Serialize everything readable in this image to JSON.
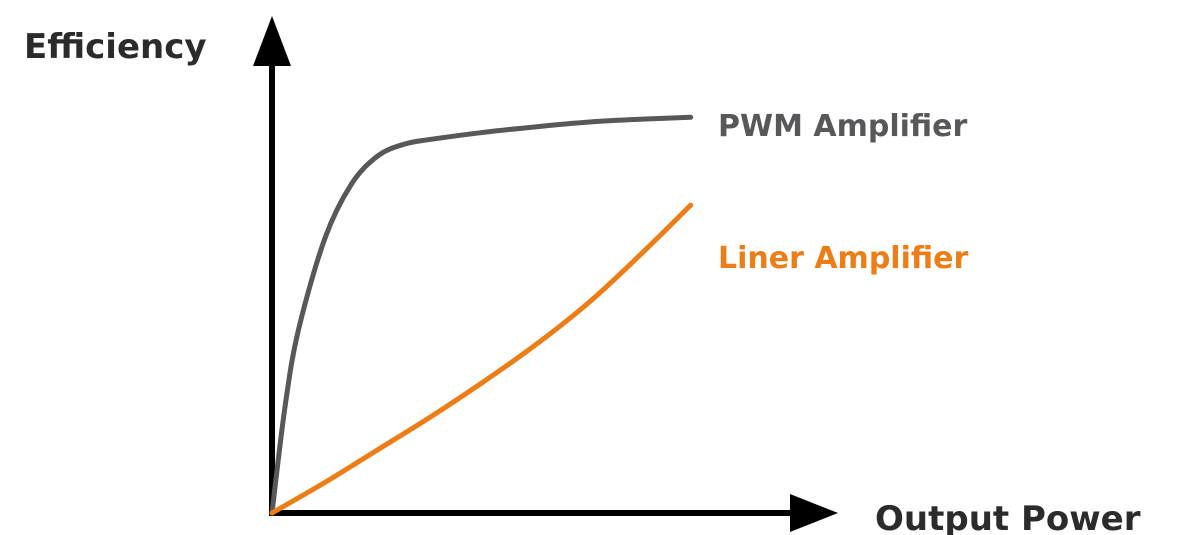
{
  "chart_data": {
    "type": "line",
    "title": "",
    "xlabel": "Output Power",
    "ylabel": "Efficiency",
    "grid": false,
    "legend": "inline labels at line ends",
    "xlim": [
      0,
      10
    ],
    "ylim": [
      0,
      10
    ],
    "series": [
      {
        "name": "PWM Amplifier",
        "color": "#58585a",
        "x": [
          0,
          0.25,
          0.5,
          1,
          1.5,
          2,
          2.5,
          3,
          4,
          5,
          6,
          7,
          7.9
        ],
        "y": [
          0,
          2.3,
          3.9,
          5.85,
          7.0,
          7.6,
          7.85,
          7.95,
          8.1,
          8.22,
          8.32,
          8.38,
          8.42
        ]
      },
      {
        "name": "Liner Amplifier",
        "color": "#ed7d16",
        "x": [
          0,
          1,
          2,
          3,
          4,
          5,
          6,
          7,
          7.9
        ],
        "y": [
          0,
          0.65,
          1.35,
          2.05,
          2.8,
          3.6,
          4.5,
          5.55,
          6.55
        ]
      }
    ]
  }
}
